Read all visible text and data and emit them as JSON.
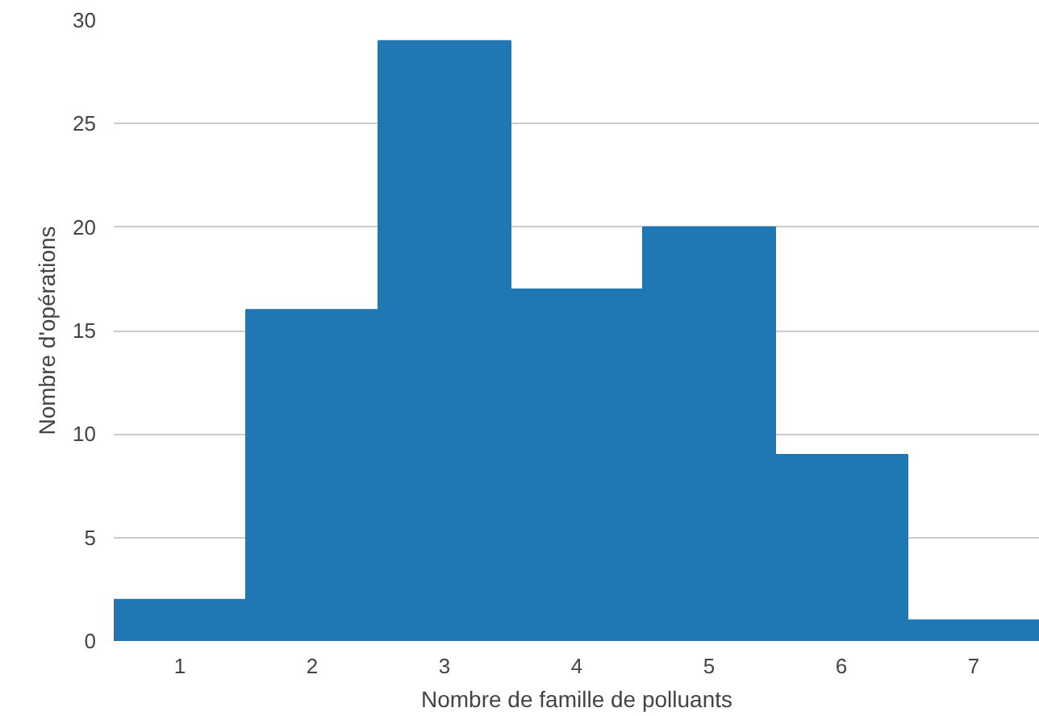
{
  "chart_data": {
    "type": "histogram",
    "xlabel": "Nombre de famille de polluants",
    "ylabel": "Nombre d'opérations",
    "bins": [
      0.5,
      1.5,
      2.5,
      3.5,
      4.5,
      5.5,
      6.5,
      7.5
    ],
    "values": [
      2,
      16,
      29,
      17,
      20,
      9,
      1
    ],
    "color": "#1f77b4",
    "xlim": [
      0.5,
      7.5
    ],
    "xticks": [
      1,
      2,
      3,
      4,
      5,
      6,
      7
    ],
    "ylim": [
      0,
      30
    ],
    "yticks": [
      0,
      5,
      10,
      15,
      20,
      25,
      30
    ],
    "grid": "y"
  }
}
